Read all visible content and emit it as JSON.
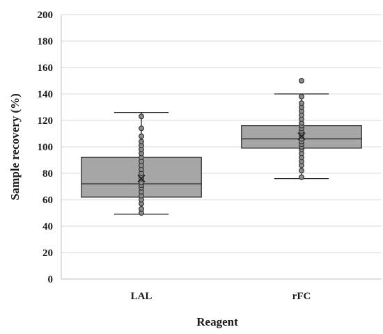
{
  "chart_data": {
    "type": "box",
    "xlabel": "Reagent",
    "ylabel": "Sample recovery (%)",
    "ylim": [
      0,
      200
    ],
    "yticks": [
      0,
      20,
      40,
      60,
      80,
      100,
      120,
      140,
      160,
      180,
      200
    ],
    "grid": true,
    "box_color": "#a6a6a6",
    "categories": [
      "LAL",
      "rFC"
    ],
    "boxes": [
      {
        "name": "LAL",
        "min": 49,
        "q1": 62,
        "median": 72,
        "q3": 92,
        "max": 126,
        "mean": 76,
        "points": [
          50,
          53,
          57,
          60,
          63,
          66,
          69,
          71,
          73,
          76,
          78,
          80,
          83,
          86,
          89,
          92,
          95,
          98,
          101,
          104,
          108,
          114,
          123
        ]
      },
      {
        "name": "rFC",
        "min": 76,
        "q1": 99,
        "median": 106,
        "q3": 116,
        "max": 140,
        "mean": 108,
        "points": [
          77,
          82,
          86,
          89,
          92,
          95,
          98,
          100,
          102,
          104,
          106,
          108,
          110,
          112,
          114,
          116,
          118,
          121,
          124,
          127,
          130,
          133,
          138,
          150
        ]
      }
    ]
  }
}
